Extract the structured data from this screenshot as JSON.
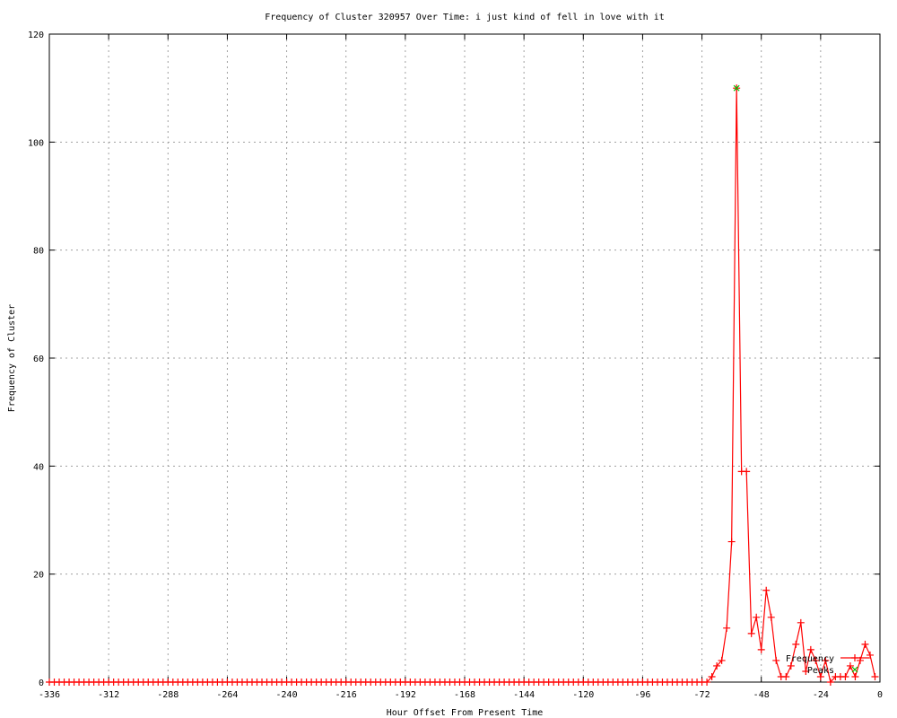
{
  "chart_data": {
    "type": "line",
    "title": "Frequency of Cluster 320957 Over Time: i just kind of fell in love with it",
    "xlabel": "Hour Offset From Present Time",
    "ylabel": "Frequency of Cluster",
    "xlim": [
      -336,
      0
    ],
    "ylim": [
      0,
      120
    ],
    "xticks": [
      -336,
      -312,
      -288,
      -264,
      -240,
      -216,
      -192,
      -168,
      -144,
      -120,
      -96,
      -72,
      -48,
      -24,
      0
    ],
    "yticks": [
      0,
      20,
      40,
      60,
      80,
      100,
      120
    ],
    "grid": true,
    "legend": "bottom-right",
    "series": [
      {
        "name": "Frequency",
        "color": "#ff0000",
        "marker": "plus",
        "style": "linespoints",
        "x": [
          -336,
          -334,
          -332,
          -330,
          -328,
          -326,
          -324,
          -322,
          -320,
          -318,
          -316,
          -314,
          -312,
          -310,
          -308,
          -306,
          -304,
          -302,
          -300,
          -298,
          -296,
          -294,
          -292,
          -290,
          -288,
          -286,
          -284,
          -282,
          -280,
          -278,
          -276,
          -274,
          -272,
          -270,
          -268,
          -266,
          -264,
          -262,
          -260,
          -258,
          -256,
          -254,
          -252,
          -250,
          -248,
          -246,
          -244,
          -242,
          -240,
          -238,
          -236,
          -234,
          -232,
          -230,
          -228,
          -226,
          -224,
          -222,
          -220,
          -218,
          -216,
          -214,
          -212,
          -210,
          -208,
          -206,
          -204,
          -202,
          -200,
          -198,
          -196,
          -194,
          -192,
          -190,
          -188,
          -186,
          -184,
          -182,
          -180,
          -178,
          -176,
          -174,
          -172,
          -170,
          -168,
          -166,
          -164,
          -162,
          -160,
          -158,
          -156,
          -154,
          -152,
          -150,
          -148,
          -146,
          -144,
          -142,
          -140,
          -138,
          -136,
          -134,
          -132,
          -130,
          -128,
          -126,
          -124,
          -122,
          -120,
          -118,
          -116,
          -114,
          -112,
          -110,
          -108,
          -106,
          -104,
          -102,
          -100,
          -98,
          -96,
          -94,
          -92,
          -90,
          -88,
          -86,
          -84,
          -82,
          -80,
          -78,
          -76,
          -74,
          -72,
          -70,
          -68,
          -66,
          -64,
          -62,
          -60,
          -58,
          -56,
          -54,
          -52,
          -50,
          -48,
          -46,
          -44,
          -42,
          -40,
          -38,
          -36,
          -34,
          -32,
          -30,
          -28,
          -26,
          -24,
          -22,
          -20,
          -18,
          -16,
          -14,
          -12,
          -10,
          -8,
          -6,
          -4,
          -2
        ],
        "y": [
          0,
          0,
          0,
          0,
          0,
          0,
          0,
          0,
          0,
          0,
          0,
          0,
          0,
          0,
          0,
          0,
          0,
          0,
          0,
          0,
          0,
          0,
          0,
          0,
          0,
          0,
          0,
          0,
          0,
          0,
          0,
          0,
          0,
          0,
          0,
          0,
          0,
          0,
          0,
          0,
          0,
          0,
          0,
          0,
          0,
          0,
          0,
          0,
          0,
          0,
          0,
          0,
          0,
          0,
          0,
          0,
          0,
          0,
          0,
          0,
          0,
          0,
          0,
          0,
          0,
          0,
          0,
          0,
          0,
          0,
          0,
          0,
          0,
          0,
          0,
          0,
          0,
          0,
          0,
          0,
          0,
          0,
          0,
          0,
          0,
          0,
          0,
          0,
          0,
          0,
          0,
          0,
          0,
          0,
          0,
          0,
          0,
          0,
          0,
          0,
          0,
          0,
          0,
          0,
          0,
          0,
          0,
          0,
          0,
          0,
          0,
          0,
          0,
          0,
          0,
          0,
          0,
          0,
          0,
          0,
          0,
          0,
          0,
          0,
          0,
          0,
          0,
          0,
          0,
          0,
          0,
          0,
          0,
          0,
          1,
          3,
          4,
          10,
          26,
          110,
          39,
          39,
          9,
          12,
          6,
          17,
          12,
          4,
          1,
          1,
          3,
          7,
          11,
          2,
          6,
          4,
          1,
          4,
          0,
          1,
          1,
          1,
          3,
          1,
          4,
          7,
          5,
          1
        ]
      },
      {
        "name": "Peaks",
        "color": "#00c000",
        "marker": "cross",
        "style": "points",
        "x": [
          -58
        ],
        "y": [
          110
        ]
      }
    ]
  }
}
